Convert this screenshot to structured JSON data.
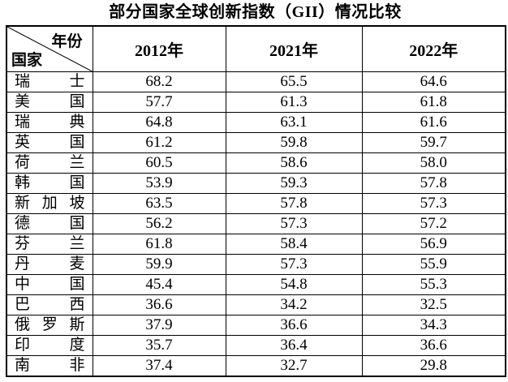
{
  "title": "部分国家全球创新指数（GII）情况比较",
  "colors": {
    "background": "#ffffff",
    "text": "#000000",
    "border": "#000000"
  },
  "table": {
    "corner": {
      "top_right": "年份",
      "bottom_left": "国家"
    },
    "year_headers": [
      "2012年",
      "2021年",
      "2022年"
    ],
    "rows": [
      {
        "country": "瑞士",
        "v2012": "68.2",
        "v2021": "65.5",
        "v2022": "64.6"
      },
      {
        "country": "美国",
        "v2012": "57.7",
        "v2021": "61.3",
        "v2022": "61.8"
      },
      {
        "country": "瑞典",
        "v2012": "64.8",
        "v2021": "63.1",
        "v2022": "61.6"
      },
      {
        "country": "英国",
        "v2012": "61.2",
        "v2021": "59.8",
        "v2022": "59.7"
      },
      {
        "country": "荷兰",
        "v2012": "60.5",
        "v2021": "58.6",
        "v2022": "58.0"
      },
      {
        "country": "韩国",
        "v2012": "53.9",
        "v2021": "59.3",
        "v2022": "57.8"
      },
      {
        "country": "新加坡",
        "v2012": "63.5",
        "v2021": "57.8",
        "v2022": "57.3"
      },
      {
        "country": "德国",
        "v2012": "56.2",
        "v2021": "57.3",
        "v2022": "57.2"
      },
      {
        "country": "芬兰",
        "v2012": "61.8",
        "v2021": "58.4",
        "v2022": "56.9"
      },
      {
        "country": "丹麦",
        "v2012": "59.9",
        "v2021": "57.3",
        "v2022": "55.9"
      },
      {
        "country": "中国",
        "v2012": "45.4",
        "v2021": "54.8",
        "v2022": "55.3"
      },
      {
        "country": "巴西",
        "v2012": "36.6",
        "v2021": "34.2",
        "v2022": "32.5"
      },
      {
        "country": "俄罗斯",
        "v2012": "37.9",
        "v2021": "36.6",
        "v2022": "34.3"
      },
      {
        "country": "印度",
        "v2012": "35.7",
        "v2021": "36.4",
        "v2022": "36.6"
      },
      {
        "country": "南非",
        "v2012": "37.4",
        "v2021": "32.7",
        "v2022": "29.8"
      }
    ]
  }
}
